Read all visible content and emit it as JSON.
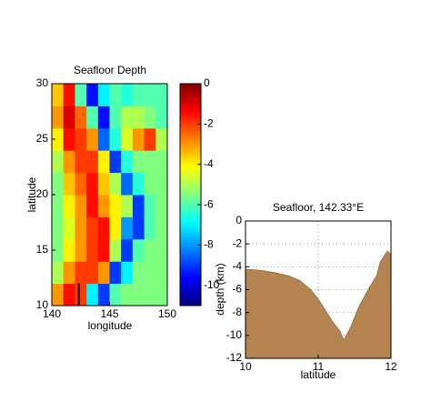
{
  "chart_data": [
    {
      "type": "heatmap",
      "title": "Seafloor Depth",
      "xlabel": "longitude",
      "ylabel": "latitude",
      "x": [
        140.5,
        141.5,
        142.5,
        143.5,
        144.5,
        145.5,
        146.5,
        147.5,
        148.5,
        149.5
      ],
      "y": [
        11,
        13,
        15,
        17,
        19,
        21,
        23,
        25,
        27,
        29
      ],
      "z": [
        [
          -3,
          -1.5,
          -2,
          -7,
          -9,
          -6,
          -5.5,
          -5.5,
          -5.5,
          -5.5
        ],
        [
          -5,
          -3,
          -2,
          -2,
          -3,
          -9,
          -7,
          -5.5,
          -5.5,
          -5.5
        ],
        [
          -5.5,
          -4,
          -3,
          -2,
          -1.5,
          -5,
          -9,
          -6,
          -5.5,
          -5.5
        ],
        [
          -5.5,
          -4.5,
          -3,
          -2,
          -1.5,
          -4,
          -8,
          -9,
          -6,
          -5.5
        ],
        [
          -5.5,
          -4,
          -3,
          -1.5,
          -3,
          -4,
          -5,
          -9,
          -6,
          -5.5
        ],
        [
          -5.5,
          -3.5,
          -2.5,
          -1.5,
          -3.5,
          -5,
          -8.5,
          -6.5,
          -5.5,
          -5.5
        ],
        [
          -5,
          -3,
          -2,
          -2,
          -4,
          -9,
          -6.5,
          -5.5,
          -5.5,
          -5.5
        ],
        [
          -4,
          -1.5,
          -2,
          -3,
          -8.5,
          -6.5,
          -4.5,
          -3,
          -2,
          -5
        ],
        [
          -3,
          -1,
          -2.5,
          -6,
          -9.5,
          -6,
          -5,
          -5,
          -5.5,
          -6
        ],
        [
          -3.5,
          -1.5,
          -6,
          -9.5,
          -7,
          -6,
          -6.5,
          -6,
          -6,
          -6
        ]
      ],
      "xlim": [
        140,
        150
      ],
      "xticks": [
        140,
        145,
        150
      ],
      "ylim": [
        10,
        30
      ],
      "yticks": [
        10,
        15,
        20,
        25,
        30
      ],
      "clim": [
        -11,
        0
      ],
      "cticks": [
        0,
        -2,
        -4,
        -6,
        -8,
        -10
      ],
      "colormap": "jet",
      "section_line": {
        "x": 142.33,
        "y": [
          10,
          12
        ],
        "color": "#000000"
      }
    },
    {
      "type": "area",
      "title": "Seafloor, 142.33°E",
      "xlabel": "latitude",
      "ylabel": "depth (km)",
      "x": [
        10,
        10.2,
        10.4,
        10.6,
        10.75,
        10.9,
        11.0,
        11.1,
        11.2,
        11.3,
        11.35,
        11.45,
        11.55,
        11.7,
        11.8,
        11.85,
        11.95,
        12
      ],
      "values": [
        -4.2,
        -4.3,
        -4.5,
        -4.8,
        -5.2,
        -6,
        -6.8,
        -7.8,
        -8.8,
        -9.6,
        -10.4,
        -9.2,
        -7.6,
        -5.8,
        -4.8,
        -3.6,
        -2.6,
        -2.9
      ],
      "color": "#b5834f",
      "xlim": [
        10,
        12
      ],
      "xticks": [
        10,
        11,
        12
      ],
      "ylim": [
        -12,
        0
      ],
      "yticks": [
        0,
        -2,
        -4,
        -6,
        -8,
        -10,
        -12
      ],
      "grid": true
    }
  ]
}
